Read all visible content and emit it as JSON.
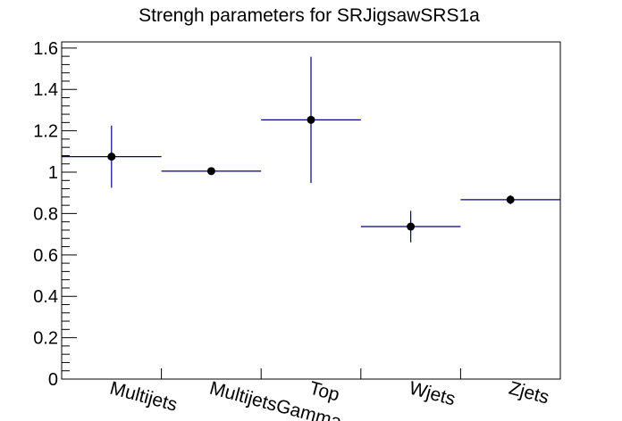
{
  "chart_data": {
    "type": "scatter",
    "title": "Strengh parameters for SRJigsawSRS1a",
    "xlabel": "",
    "ylabel": "",
    "categories": [
      "Multijets",
      "MultijetsGamma",
      "Top",
      "Wjets",
      "Zjets"
    ],
    "y_tick_labels": [
      "0",
      "0.2",
      "0.4",
      "0.6",
      "0.8",
      "1",
      "1.2",
      "1.4",
      "1.6"
    ],
    "ylim": [
      0,
      1.6295
    ],
    "grid": false,
    "legend": "none",
    "series": [
      {
        "values": [
          1.075,
          1.005,
          1.253,
          0.737,
          0.867
        ],
        "errors": [
          0.15,
          0.005,
          0.305,
          0.076,
          0.022
        ]
      }
    ],
    "colors": {
      "bin_line": "#000080",
      "error_bar": "#000080",
      "marker": "#000000",
      "axis": "#000000",
      "background": "#ffffff"
    }
  }
}
